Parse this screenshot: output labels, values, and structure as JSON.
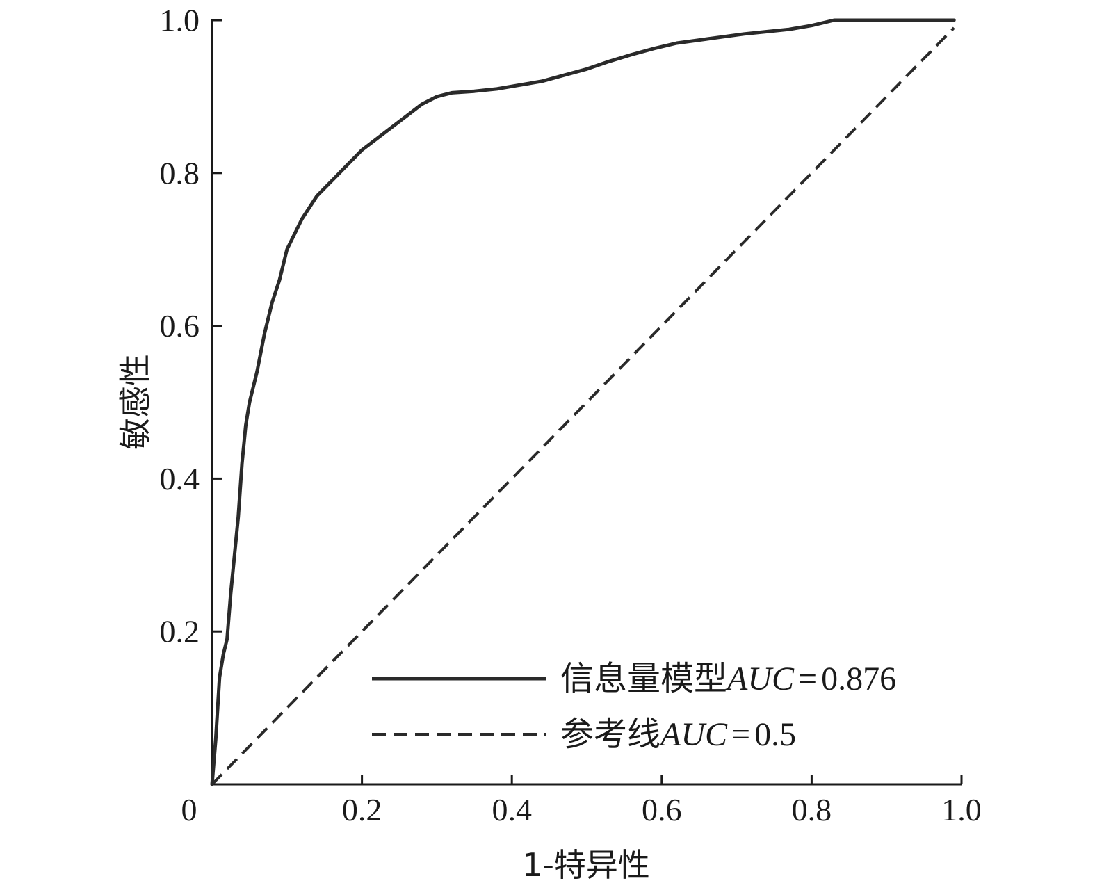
{
  "chart_data": {
    "type": "line",
    "xlabel": "1-特异性",
    "ylabel": "敏感性",
    "xlim": [
      0,
      1.0
    ],
    "ylim": [
      0,
      1.0
    ],
    "x_ticks": [
      "0",
      "0.2",
      "0.4",
      "0.6",
      "0.8",
      "1.0"
    ],
    "y_ticks": [
      "0.2",
      "0.4",
      "0.6",
      "0.8",
      "1.0"
    ],
    "grid": false,
    "legend_position": "bottom-right",
    "series": [
      {
        "name": "信息量模型AUC=0.876",
        "name_parts": {
          "prefix": "信息量模型",
          "metric": "AUC",
          "equals": "=",
          "value": "0.876"
        },
        "line_style": "solid",
        "color": "#2a2a2a",
        "x": [
          0,
          0.005,
          0.01,
          0.015,
          0.02,
          0.025,
          0.03,
          0.035,
          0.04,
          0.045,
          0.05,
          0.055,
          0.06,
          0.07,
          0.08,
          0.09,
          0.1,
          0.11,
          0.12,
          0.14,
          0.16,
          0.18,
          0.2,
          0.22,
          0.24,
          0.26,
          0.28,
          0.3,
          0.32,
          0.35,
          0.38,
          0.41,
          0.44,
          0.47,
          0.5,
          0.53,
          0.56,
          0.59,
          0.62,
          0.65,
          0.68,
          0.71,
          0.74,
          0.77,
          0.8,
          0.83,
          0.86,
          0.9,
          0.95,
          0.99
        ],
        "y": [
          0,
          0.06,
          0.14,
          0.17,
          0.19,
          0.25,
          0.3,
          0.35,
          0.42,
          0.47,
          0.5,
          0.52,
          0.54,
          0.59,
          0.63,
          0.66,
          0.7,
          0.72,
          0.74,
          0.77,
          0.79,
          0.81,
          0.83,
          0.845,
          0.86,
          0.875,
          0.89,
          0.9,
          0.905,
          0.907,
          0.91,
          0.915,
          0.92,
          0.928,
          0.936,
          0.946,
          0.955,
          0.963,
          0.97,
          0.974,
          0.978,
          0.982,
          0.985,
          0.988,
          0.993,
          1.0,
          1.0,
          1.0,
          1.0,
          1.0
        ]
      },
      {
        "name": "参考线AUC=0.5",
        "name_parts": {
          "prefix": "参考线",
          "metric": "AUC",
          "equals": "=",
          "value": "0.5"
        },
        "line_style": "dashed",
        "color": "#2a2a2a",
        "x": [
          0,
          0.99
        ],
        "y": [
          0,
          0.99
        ]
      }
    ]
  }
}
